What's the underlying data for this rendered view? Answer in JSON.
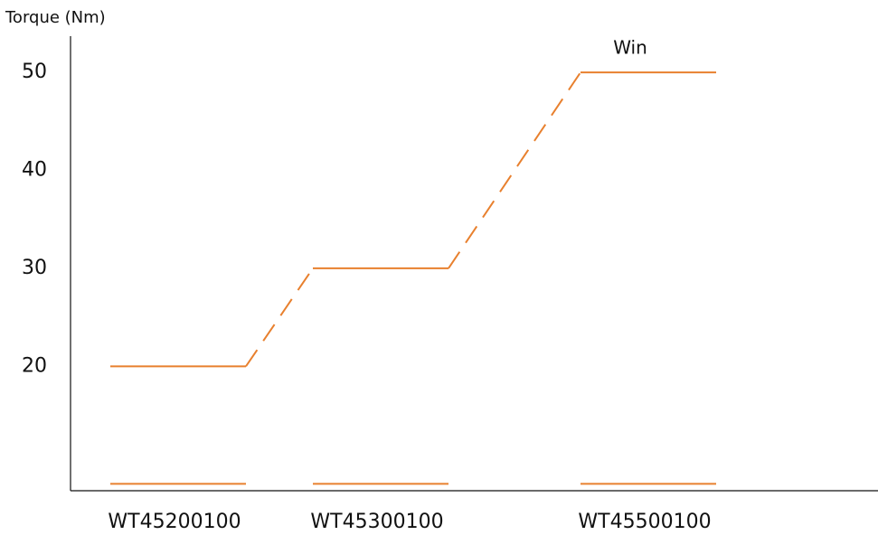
{
  "chart_data": {
    "type": "step-line",
    "y_label": "Torque (Nm)",
    "categories": [
      "WT45200100",
      "WT45300100",
      "WT45500100"
    ],
    "series": [
      {
        "color": "#e8802e",
        "values": [
          20,
          30,
          50
        ]
      },
      {
        "color": "#e8802e",
        "values": [
          8,
          8,
          8
        ]
      }
    ],
    "annotations": [
      {
        "text": "Win",
        "category": 2,
        "series": 0
      }
    ],
    "ylim": [
      7.3,
      53.7
    ],
    "yticks": [
      20,
      30,
      40,
      50
    ],
    "grid": false
  }
}
